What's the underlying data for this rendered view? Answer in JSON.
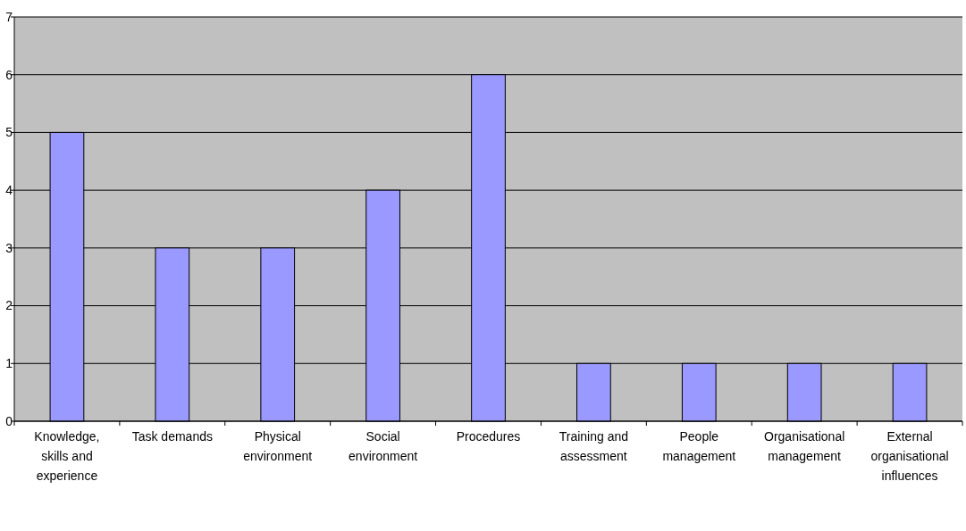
{
  "chart_data": {
    "type": "bar",
    "categories": [
      "Knowledge, skills and experience",
      "Task demands",
      "Physical environment",
      "Social environment",
      "Procedures",
      "Training and assessment",
      "People management",
      "Organisational management",
      "External organisational influences"
    ],
    "values": [
      5,
      3,
      3,
      4,
      6,
      1,
      1,
      1,
      1
    ],
    "color": "#9999ff",
    "ylim": [
      0,
      7
    ],
    "yticks": [
      0,
      1,
      2,
      3,
      4,
      5,
      6,
      7
    ],
    "grid": "y"
  }
}
